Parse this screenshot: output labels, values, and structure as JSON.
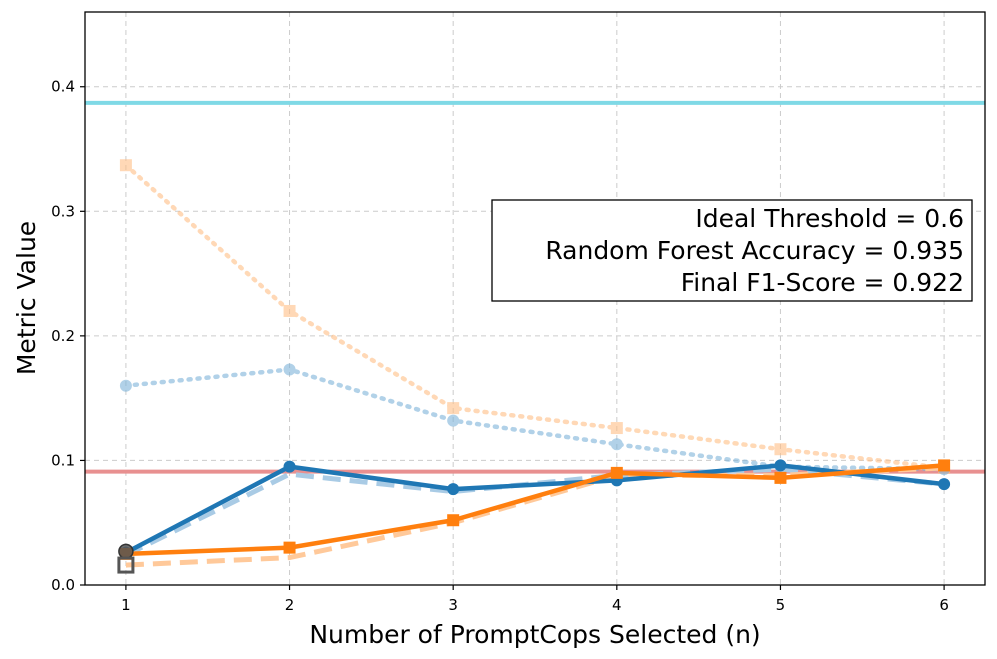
{
  "chart_data": {
    "type": "line",
    "xlabel": "Number of PromptCops Selected (n)",
    "ylabel": "Metric Value",
    "x": [
      1,
      2,
      3,
      4,
      5,
      6
    ],
    "xlim": [
      0.75,
      6.25
    ],
    "ylim": [
      0.0,
      0.46
    ],
    "xticks": [
      "1",
      "2",
      "3",
      "4",
      "5",
      "6"
    ],
    "yticks": [
      "0.0",
      "0.1",
      "0.2",
      "0.3",
      "0.4"
    ],
    "grid": true,
    "annotation": {
      "lines": [
        "Ideal Threshold = 0.6",
        "Random Forest Accuracy = 0.935",
        "Final F1-Score = 0.922"
      ],
      "placement": "right"
    },
    "hlines": [
      {
        "y": 0.387,
        "color": "#7fd9e6"
      },
      {
        "y": 0.091,
        "color": "#e89090"
      }
    ],
    "series": [
      {
        "values": [
          0.337,
          0.22,
          0.142,
          0.126,
          0.109,
          0.094
        ],
        "color": "#ffbf86",
        "style": "dotted",
        "marker": "square",
        "alpha": 0.6
      },
      {
        "values": [
          0.16,
          0.173,
          0.132,
          0.113,
          0.095,
          0.093
        ],
        "color": "#7eb4d9",
        "style": "dotted",
        "marker": "circle",
        "alpha": 0.6
      },
      {
        "values": [
          0.024,
          0.089,
          0.075,
          0.088,
          0.093,
          0.081
        ],
        "color": "#a9cbe5",
        "style": "dashed",
        "marker": "none",
        "alpha": 1
      },
      {
        "values": [
          0.016,
          0.022,
          0.05,
          0.088,
          0.088,
          0.094
        ],
        "color": "#ffc99a",
        "style": "dashed",
        "marker": "none",
        "alpha": 1
      },
      {
        "values": [
          0.026,
          0.095,
          0.077,
          0.084,
          0.096,
          0.081
        ],
        "color": "#1f77b4",
        "style": "solid",
        "marker": "circle",
        "alpha": 1
      },
      {
        "values": [
          0.025,
          0.03,
          0.052,
          0.09,
          0.086,
          0.096
        ],
        "color": "#ff7f0e",
        "style": "solid",
        "marker": "square",
        "alpha": 1
      }
    ],
    "start_markers": [
      {
        "x": 1,
        "y": 0.027,
        "shape": "circle",
        "color": "#555555"
      },
      {
        "x": 1,
        "y": 0.016,
        "shape": "square",
        "color": "#555555"
      }
    ]
  }
}
